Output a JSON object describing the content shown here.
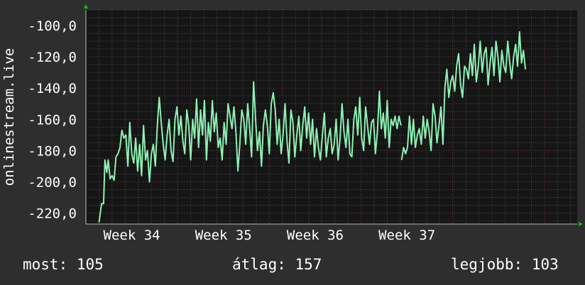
{
  "chart_data": {
    "type": "line",
    "ylabel": "onlinestream.live",
    "ylim": [
      -227,
      -90
    ],
    "y_ticks": [
      -220,
      -200,
      -180,
      -160,
      -140,
      -120,
      -100
    ],
    "y_tick_labels": [
      "-220,0",
      "-200,0",
      "-180,0",
      "-160,0",
      "-140,0",
      "-120,0",
      "-100,0"
    ],
    "x_range_days": [
      0,
      31.1
    ],
    "x_ticks": [
      {
        "label": "Week 34",
        "x": 3.5
      },
      {
        "label": "Week 35",
        "x": 10.5
      },
      {
        "label": "Week 36",
        "x": 17.5
      },
      {
        "label": "Week 37",
        "x": 24.5
      }
    ],
    "grid": true,
    "colors": {
      "background": "#2e2e2e",
      "plot_background": "#151515",
      "grid_minor": "#4a4a4a",
      "grid_major": "#6b3a3a",
      "line": "#8ef0b4",
      "axis_arrow": "#00c800"
    },
    "series": [
      {
        "values": [
          [
            1.0,
            -226
          ],
          [
            1.2,
            -214
          ],
          [
            1.35,
            -214
          ],
          [
            1.45,
            -186
          ],
          [
            1.6,
            -194
          ],
          [
            1.7,
            -186
          ],
          [
            1.85,
            -198
          ],
          [
            2.0,
            -196
          ],
          [
            2.15,
            -199
          ],
          [
            2.3,
            -184
          ],
          [
            2.45,
            -182
          ],
          [
            2.6,
            -178
          ],
          [
            2.75,
            -167
          ],
          [
            2.9,
            -172
          ],
          [
            3.05,
            -170
          ],
          [
            3.2,
            -190
          ],
          [
            3.35,
            -162
          ],
          [
            3.5,
            -182
          ],
          [
            3.65,
            -188
          ],
          [
            3.8,
            -172
          ],
          [
            3.95,
            -193
          ],
          [
            4.1,
            -176
          ],
          [
            4.25,
            -196
          ],
          [
            4.4,
            -164
          ],
          [
            4.55,
            -186
          ],
          [
            4.7,
            -180
          ],
          [
            4.85,
            -200
          ],
          [
            5.0,
            -182
          ],
          [
            5.15,
            -176
          ],
          [
            5.3,
            -190
          ],
          [
            5.45,
            -164
          ],
          [
            5.6,
            -146
          ],
          [
            5.75,
            -162
          ],
          [
            5.9,
            -176
          ],
          [
            6.05,
            -186
          ],
          [
            6.2,
            -170
          ],
          [
            6.35,
            -160
          ],
          [
            6.5,
            -180
          ],
          [
            6.65,
            -187
          ],
          [
            6.8,
            -160
          ],
          [
            6.95,
            -152
          ],
          [
            7.1,
            -170
          ],
          [
            7.25,
            -158
          ],
          [
            7.4,
            -174
          ],
          [
            7.55,
            -182
          ],
          [
            7.7,
            -154
          ],
          [
            7.85,
            -164
          ],
          [
            8.0,
            -186
          ],
          [
            8.15,
            -160
          ],
          [
            8.3,
            -172
          ],
          [
            8.45,
            -147
          ],
          [
            8.6,
            -178
          ],
          [
            8.75,
            -154
          ],
          [
            8.9,
            -170
          ],
          [
            9.05,
            -148
          ],
          [
            9.2,
            -186
          ],
          [
            9.35,
            -162
          ],
          [
            9.5,
            -174
          ],
          [
            9.65,
            -148
          ],
          [
            9.8,
            -168
          ],
          [
            9.95,
            -156
          ],
          [
            10.1,
            -178
          ],
          [
            10.25,
            -172
          ],
          [
            10.4,
            -186
          ],
          [
            10.55,
            -162
          ],
          [
            10.7,
            -176
          ],
          [
            10.85,
            -150
          ],
          [
            11.0,
            -158
          ],
          [
            11.15,
            -166
          ],
          [
            11.3,
            -152
          ],
          [
            11.45,
            -168
          ],
          [
            11.6,
            -193
          ],
          [
            11.75,
            -176
          ],
          [
            11.9,
            -154
          ],
          [
            12.05,
            -160
          ],
          [
            12.2,
            -176
          ],
          [
            12.35,
            -150
          ],
          [
            12.5,
            -166
          ],
          [
            12.65,
            -184
          ],
          [
            12.8,
            -136
          ],
          [
            12.95,
            -160
          ],
          [
            13.1,
            -180
          ],
          [
            13.25,
            -168
          ],
          [
            13.4,
            -190
          ],
          [
            13.55,
            -164
          ],
          [
            13.7,
            -154
          ],
          [
            13.85,
            -164
          ],
          [
            14.0,
            -182
          ],
          [
            14.15,
            -150
          ],
          [
            14.3,
            -143
          ],
          [
            14.45,
            -154
          ],
          [
            14.6,
            -176
          ],
          [
            14.75,
            -160
          ],
          [
            14.9,
            -182
          ],
          [
            15.05,
            -170
          ],
          [
            15.2,
            -150
          ],
          [
            15.35,
            -174
          ],
          [
            15.5,
            -188
          ],
          [
            15.65,
            -154
          ],
          [
            15.8,
            -162
          ],
          [
            15.95,
            -184
          ],
          [
            16.1,
            -170
          ],
          [
            16.25,
            -158
          ],
          [
            16.4,
            -180
          ],
          [
            16.55,
            -164
          ],
          [
            16.7,
            -152
          ],
          [
            16.85,
            -172
          ],
          [
            17.0,
            -156
          ],
          [
            17.15,
            -176
          ],
          [
            17.3,
            -160
          ],
          [
            17.45,
            -184
          ],
          [
            17.6,
            -166
          ],
          [
            17.75,
            -178
          ],
          [
            17.9,
            -186
          ],
          [
            18.05,
            -170
          ],
          [
            18.2,
            -156
          ],
          [
            18.35,
            -184
          ],
          [
            18.5,
            -172
          ],
          [
            18.65,
            -166
          ],
          [
            18.8,
            -182
          ],
          [
            18.95,
            -176
          ],
          [
            19.1,
            -160
          ],
          [
            19.25,
            -186
          ],
          [
            19.4,
            -172
          ],
          [
            19.55,
            -150
          ],
          [
            19.7,
            -168
          ],
          [
            19.85,
            -178
          ],
          [
            20.0,
            -160
          ],
          [
            20.15,
            -182
          ],
          [
            20.3,
            -184
          ],
          [
            20.45,
            -160
          ],
          [
            20.6,
            -152
          ],
          [
            20.75,
            -170
          ],
          [
            20.9,
            -146
          ],
          [
            21.05,
            -172
          ],
          [
            21.2,
            -180
          ],
          [
            21.35,
            -152
          ],
          [
            21.5,
            -164
          ],
          [
            21.65,
            -176
          ],
          [
            21.8,
            -162
          ],
          [
            21.95,
            -160
          ],
          [
            22.1,
            -182
          ],
          [
            22.25,
            -168
          ],
          [
            22.4,
            -142
          ],
          [
            22.55,
            -166
          ],
          [
            22.7,
            -156
          ],
          [
            22.85,
            -172
          ],
          [
            23.0,
            -148
          ],
          [
            23.15,
            -178
          ],
          [
            23.3,
            -160
          ],
          [
            23.45,
            -164
          ],
          [
            23.6,
            -158
          ],
          [
            23.75,
            -166
          ],
          [
            23.9,
            -158
          ],
          [
            24.05,
            -164
          ],
          null,
          [
            24.1,
            -186
          ],
          [
            24.25,
            -178
          ],
          [
            24.4,
            -182
          ],
          [
            24.55,
            -178
          ],
          [
            24.7,
            -158
          ],
          [
            24.85,
            -176
          ],
          [
            25.0,
            -160
          ],
          [
            25.15,
            -178
          ],
          [
            25.3,
            -170
          ],
          [
            25.45,
            -166
          ],
          [
            25.6,
            -176
          ],
          [
            25.75,
            -158
          ],
          [
            25.9,
            -172
          ],
          [
            26.05,
            -160
          ],
          [
            26.2,
            -168
          ],
          [
            26.35,
            -180
          ],
          [
            26.5,
            -150
          ],
          [
            26.65,
            -158
          ],
          [
            26.8,
            -175
          ],
          [
            26.95,
            -164
          ],
          [
            27.1,
            -152
          ],
          [
            27.25,
            -176
          ],
          [
            27.4,
            -140
          ],
          [
            27.55,
            -128
          ],
          [
            27.7,
            -146
          ],
          [
            27.85,
            -136
          ],
          [
            28.0,
            -132
          ],
          [
            28.15,
            -142
          ],
          [
            28.3,
            -126
          ],
          [
            28.45,
            -118
          ],
          [
            28.6,
            -138
          ],
          [
            28.75,
            -146
          ],
          [
            28.9,
            -126
          ],
          [
            29.05,
            -128
          ],
          [
            29.2,
            -134
          ],
          [
            29.35,
            -118
          ],
          [
            29.5,
            -132
          ],
          [
            29.65,
            -112
          ],
          [
            29.8,
            -136
          ],
          [
            29.95,
            -126
          ],
          [
            30.1,
            -110
          ],
          [
            30.25,
            -130
          ],
          [
            30.4,
            -118
          ],
          [
            30.55,
            -114
          ],
          [
            30.7,
            -138
          ],
          [
            30.85,
            -124
          ],
          [
            31.0,
            -114
          ],
          [
            31.15,
            -132
          ],
          [
            31.3,
            -110
          ],
          [
            31.45,
            -120
          ],
          [
            31.6,
            -136
          ],
          [
            31.75,
            -116
          ],
          [
            31.9,
            -126
          ],
          [
            32.05,
            -130
          ],
          [
            32.2,
            -110
          ],
          [
            32.35,
            -124
          ],
          [
            32.5,
            -134
          ],
          [
            32.65,
            -120
          ],
          [
            32.8,
            -112
          ],
          [
            32.95,
            -126
          ],
          [
            33.1,
            -104
          ],
          [
            33.25,
            -124
          ],
          [
            33.4,
            -116
          ],
          [
            33.55,
            -128
          ]
        ]
      }
    ]
  },
  "stats": {
    "current_label": "most:",
    "current_value": "105",
    "average_label": "átlag:",
    "average_value": "157",
    "best_label": "legjobb:",
    "best_value": "103"
  }
}
